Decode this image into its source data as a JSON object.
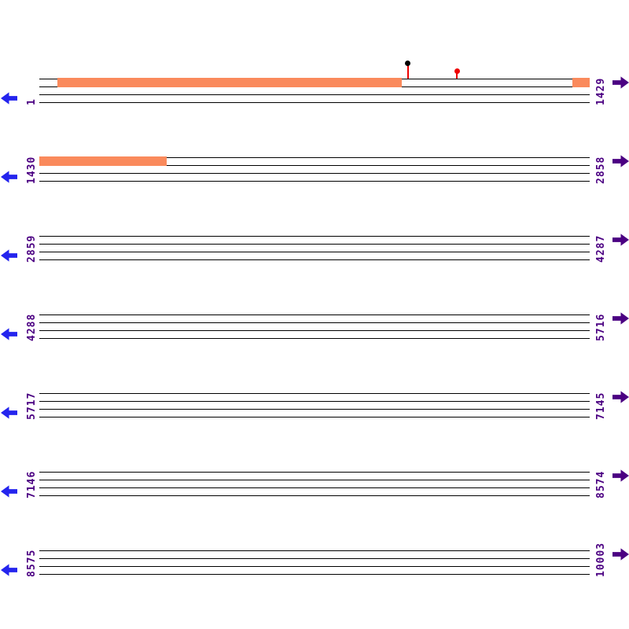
{
  "map": {
    "colors": {
      "background": "#ffffff",
      "line": "#000000",
      "label": "#4b0082",
      "left_arrow": "#2424ee",
      "right_arrow": "#4b0082",
      "feature": "#fa8a5c",
      "marker_stem": "#ee0000"
    },
    "rows": [
      {
        "index": 0,
        "start": 1,
        "end": 1429,
        "start_label": "1",
        "end_label": "1429"
      },
      {
        "index": 1,
        "start": 1430,
        "end": 2858,
        "start_label": "1430",
        "end_label": "2858"
      },
      {
        "index": 2,
        "start": 2859,
        "end": 4287,
        "start_label": "2859",
        "end_label": "4287"
      },
      {
        "index": 3,
        "start": 4288,
        "end": 5716,
        "start_label": "4288",
        "end_label": "5716"
      },
      {
        "index": 4,
        "start": 5717,
        "end": 7145,
        "start_label": "5717",
        "end_label": "7145"
      },
      {
        "index": 5,
        "start": 7146,
        "end": 8574,
        "start_label": "7146",
        "end_label": "8574"
      },
      {
        "index": 6,
        "start": 8575,
        "end": 10003,
        "start_label": "8575",
        "end_label": "10003"
      }
    ],
    "features": [
      {
        "row": 0,
        "from": 47,
        "to": 941,
        "color": "#fa8a5c"
      },
      {
        "row": 0,
        "from": 1385,
        "to": 1429,
        "color": "#fa8a5c"
      },
      {
        "row": 1,
        "from": 1430,
        "to": 1760,
        "color": "#fa8a5c"
      }
    ],
    "markers": [
      {
        "row": 0,
        "pos": 958,
        "drop": 20,
        "stem_color": "#ee0000",
        "head_color": "#000000"
      },
      {
        "row": 0,
        "pos": 1085,
        "drop": 10,
        "stem_color": "#ee0000",
        "head_color": "#ee0000"
      }
    ]
  }
}
